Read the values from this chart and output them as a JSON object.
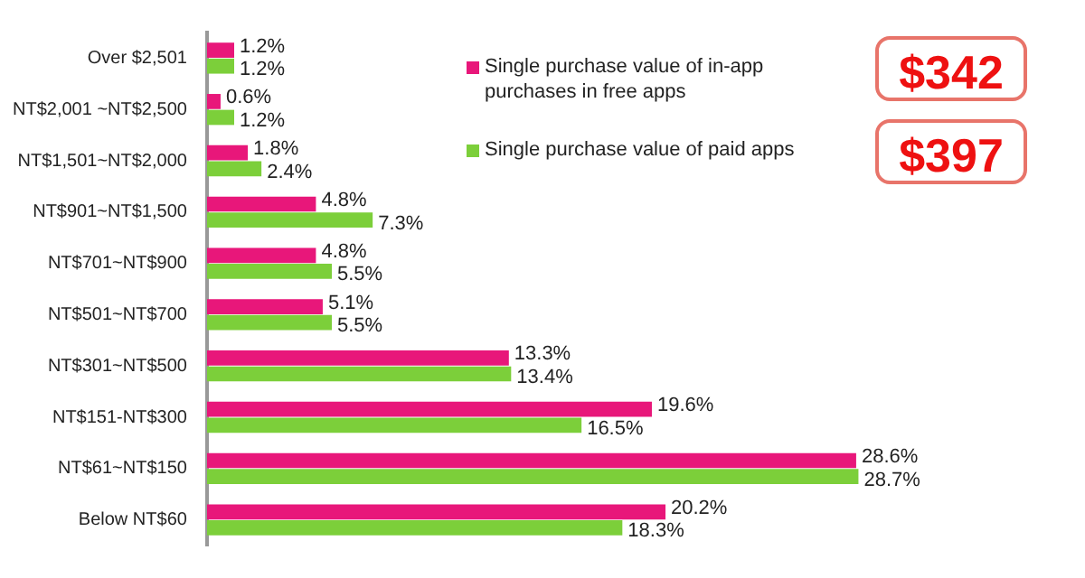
{
  "chart_data": {
    "type": "bar",
    "orientation": "horizontal",
    "categories": [
      "Over $2,501",
      "NT$2,001 ~NT$2,500",
      "NT$1,501~NT$2,000",
      "NT$901~NT$1,500",
      "NT$701~NT$900",
      "NT$501~NT$700",
      "NT$301~NT$500",
      "NT$151-NT$300",
      "NT$61~NT$150",
      "Below NT$60"
    ],
    "series": [
      {
        "name": "Single purchase value of in-app purchases in free apps",
        "color": "#e8177a",
        "values": [
          1.2,
          0.6,
          1.8,
          4.8,
          4.8,
          5.1,
          13.3,
          19.6,
          28.6,
          20.2
        ],
        "value_labels": [
          "1.2%",
          "0.6%",
          "1.8%",
          "4.8%",
          "4.8%",
          "5.1%",
          "13.3%",
          "19.6%",
          "28.6%",
          "20.2%"
        ]
      },
      {
        "name": "Single purchase value of paid apps",
        "color": "#7ccf3a",
        "values": [
          1.2,
          1.2,
          2.4,
          7.3,
          5.5,
          5.5,
          13.4,
          16.5,
          28.7,
          18.3
        ],
        "value_labels": [
          "1.2%",
          "1.2%",
          "2.4%",
          "7.3%",
          "5.5%",
          "5.5%",
          "13.4%",
          "16.5%",
          "28.7%",
          "18.3%"
        ]
      }
    ],
    "tick_labels": "y",
    "grid": false,
    "legend": "top right",
    "annotations": [
      "$342",
      "$397"
    ]
  }
}
